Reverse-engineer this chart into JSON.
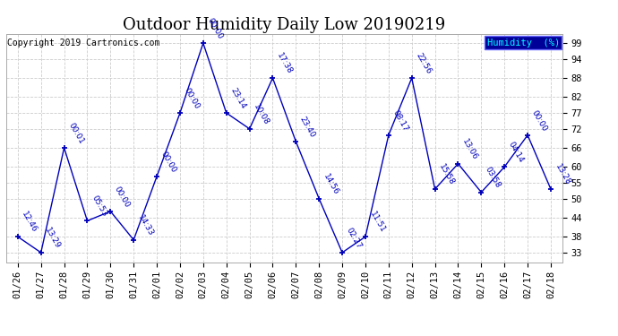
{
  "title": "Outdoor Humidity Daily Low 20190219",
  "copyright": "Copyright 2019 Cartronics.com",
  "legend_label": "Humidity  (%)",
  "x_labels": [
    "01/26",
    "01/27",
    "01/28",
    "01/29",
    "01/30",
    "01/31",
    "02/01",
    "02/02",
    "02/03",
    "02/04",
    "02/05",
    "02/06",
    "02/07",
    "02/08",
    "02/09",
    "02/10",
    "02/11",
    "02/12",
    "02/13",
    "02/14",
    "02/15",
    "02/16",
    "02/17",
    "02/18"
  ],
  "y_values": [
    38,
    33,
    66,
    43,
    46,
    37,
    57,
    77,
    99,
    77,
    72,
    88,
    68,
    50,
    33,
    38,
    70,
    88,
    53,
    61,
    52,
    60,
    70,
    53
  ],
  "point_labels": [
    "12:46",
    "13:29",
    "00:01",
    "05:53",
    "00:00",
    "14:33",
    "00:00",
    "00:00",
    "00:00",
    "23:14",
    "10:08",
    "17:38",
    "23:40",
    "14:56",
    "02:27",
    "11:51",
    "08:17",
    "22:56",
    "15:58",
    "13:06",
    "03:58",
    "04:14",
    "00:00",
    "13:28"
  ],
  "y_ticks": [
    33,
    38,
    44,
    50,
    55,
    60,
    66,
    72,
    77,
    82,
    88,
    94,
    99
  ],
  "line_color": "#0000bb",
  "marker_color": "#0000bb",
  "background_color": "#ffffff",
  "grid_color": "#cccccc",
  "title_fontsize": 13,
  "legend_bg": "#000099",
  "legend_fg": "#00ffff",
  "copyright_color": "#000000",
  "label_fontsize": 6.5,
  "tick_fontsize": 7.5
}
